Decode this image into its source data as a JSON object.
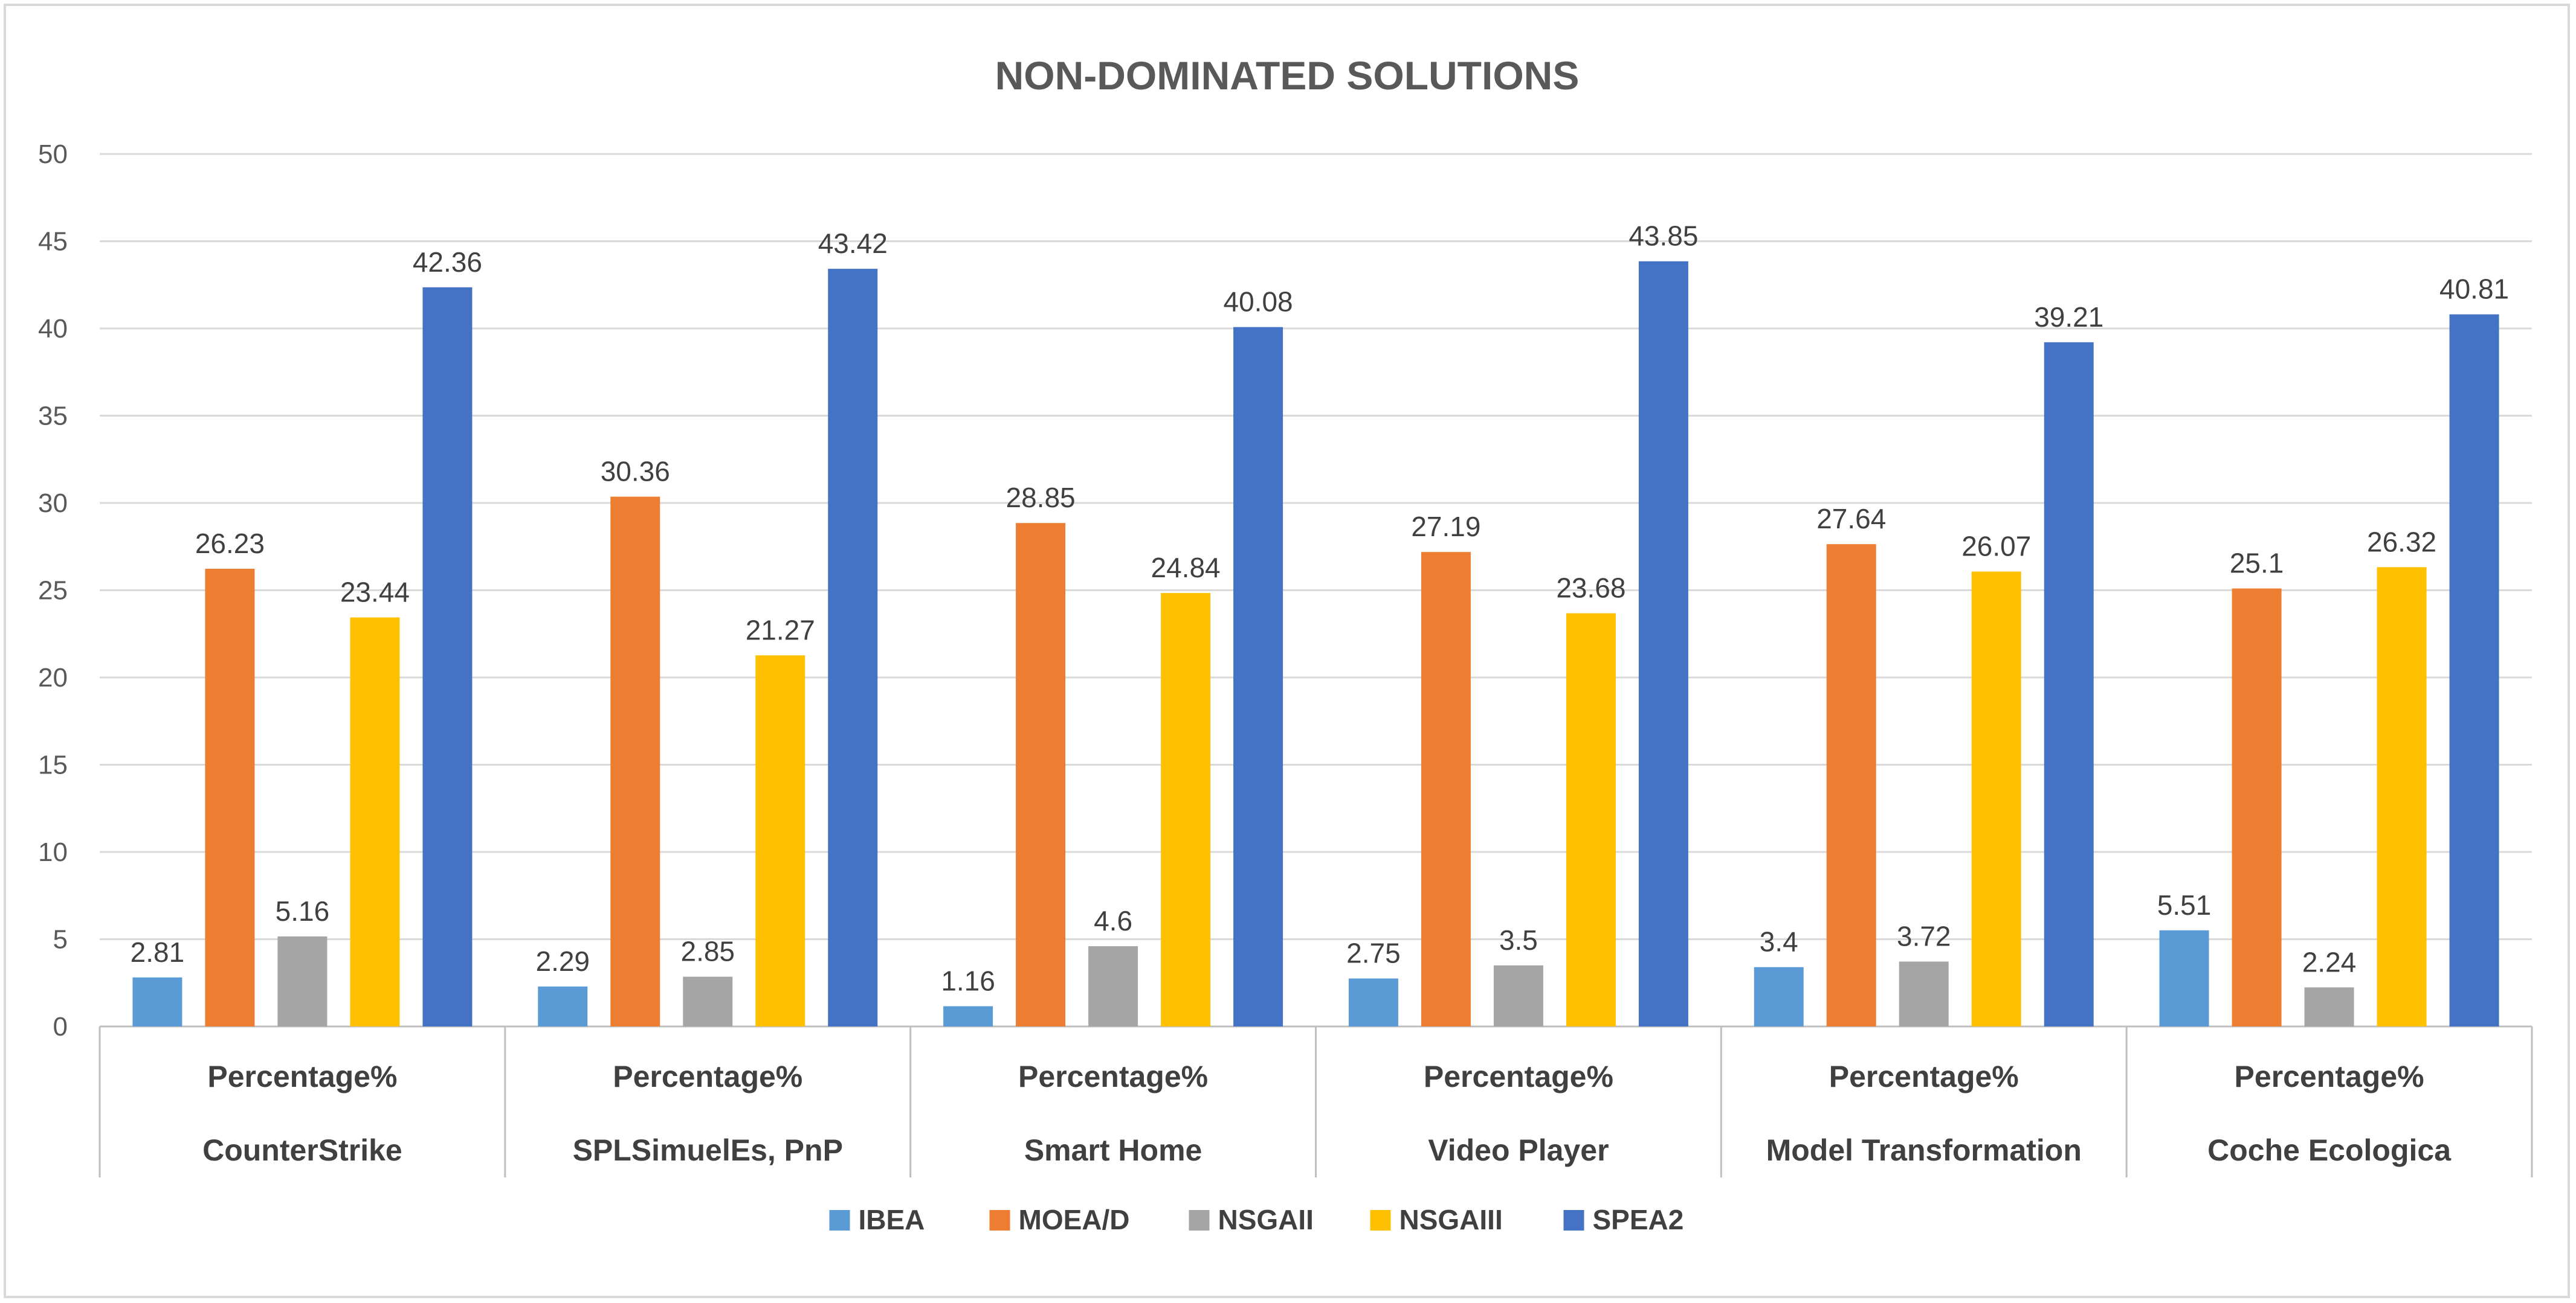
{
  "chart_data": {
    "type": "bar",
    "title": "NON-DOMINATED SOLUTIONS",
    "ylim": [
      0,
      50
    ],
    "ytick_step": 5,
    "yticks": [
      "0",
      "5",
      "10",
      "15",
      "20",
      "25",
      "30",
      "35",
      "40",
      "45",
      "50"
    ],
    "grid": true,
    "legend_position": "bottom",
    "category_levels": {
      "inner": [
        "Percentage%",
        "Percentage%",
        "Percentage%",
        "Percentage%",
        "Percentage%",
        "Percentage%"
      ],
      "outer": [
        "CounterStrike",
        "SPLSimuelEs, PnP",
        "Smart Home",
        "Video Player",
        "Model Transformation",
        "Coche Ecologica"
      ]
    },
    "series": [
      {
        "name": "IBEA",
        "color": "#5b9bd5",
        "values": [
          2.81,
          2.29,
          1.16,
          2.75,
          3.4,
          5.51
        ],
        "labels": [
          "2.81",
          "2.29",
          "1.16",
          "2.75",
          "3.4",
          "5.51"
        ]
      },
      {
        "name": "MOEA/D",
        "color": "#ed7d31",
        "values": [
          26.23,
          30.36,
          28.85,
          27.19,
          27.64,
          25.1
        ],
        "labels": [
          "26.23",
          "30.36",
          "28.85",
          "27.19",
          "27.64",
          "25.1"
        ]
      },
      {
        "name": "NSGAII",
        "color": "#a5a5a5",
        "values": [
          5.16,
          2.85,
          4.6,
          3.5,
          3.72,
          2.24
        ],
        "labels": [
          "5.16",
          "2.85",
          "4.6",
          "3.5",
          "3.72",
          "2.24"
        ]
      },
      {
        "name": "NSGAIII",
        "color": "#ffc000",
        "values": [
          23.44,
          21.27,
          24.84,
          23.68,
          26.07,
          26.32
        ],
        "labels": [
          "23.44",
          "21.27",
          "24.84",
          "23.68",
          "26.07",
          "26.32"
        ]
      },
      {
        "name": "SPEA2",
        "color": "#4472c4",
        "values": [
          42.36,
          43.42,
          40.08,
          43.85,
          39.21,
          40.81
        ],
        "labels": [
          "42.36",
          "43.42",
          "40.08",
          "43.85",
          "39.21",
          "40.81"
        ]
      }
    ]
  }
}
